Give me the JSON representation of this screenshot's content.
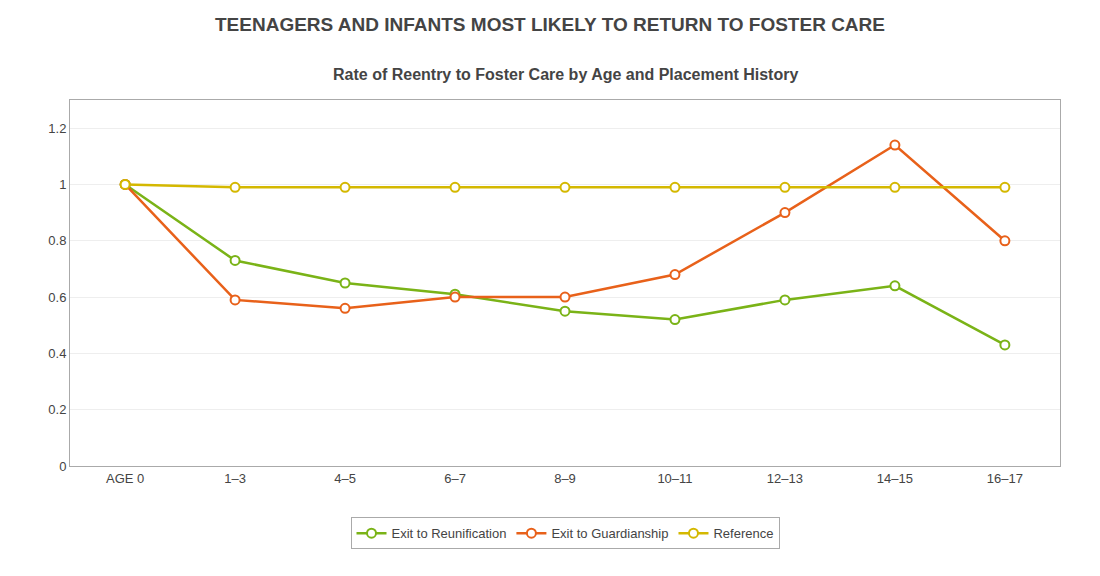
{
  "chart_data": {
    "type": "line",
    "title": "TEENAGERS AND INFANTS MOST LIKELY TO RETURN TO FOSTER CARE",
    "subtitle": "Rate of Reentry to Foster Care by Age and Placement History",
    "categories": [
      "AGE 0",
      "1–3",
      "4–5",
      "6–7",
      "8–9",
      "10–11",
      "12–13",
      "14–15",
      "16–17"
    ],
    "series": [
      {
        "name": "Exit to Reunification",
        "color": "#7ab317",
        "marker": "circle",
        "values": [
          1.0,
          0.73,
          0.65,
          0.61,
          0.55,
          0.52,
          0.59,
          0.64,
          0.43
        ]
      },
      {
        "name": "Exit to Guardianship",
        "color": "#e8611a",
        "marker": "circle",
        "values": [
          1.0,
          0.59,
          0.56,
          0.6,
          0.6,
          0.68,
          0.9,
          1.14,
          0.8
        ]
      },
      {
        "name": "Reference",
        "color": "#d4b800",
        "marker": "circle",
        "values": [
          1.0,
          0.99,
          0.99,
          0.99,
          0.99,
          0.99,
          0.99,
          0.99,
          0.99
        ]
      }
    ],
    "ylim": [
      0,
      1.3
    ],
    "yticks": [
      0,
      0.2,
      0.4,
      0.6,
      0.8,
      1,
      1.2
    ],
    "grid": true,
    "legend": "bottom"
  }
}
